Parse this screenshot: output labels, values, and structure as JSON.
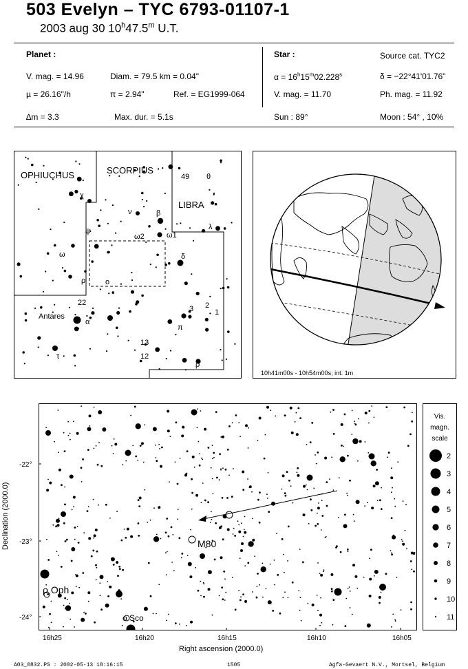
{
  "header": {
    "title": "503 Evelyn  –  TYC 6793-01107-1",
    "date": "2003 aug 30  10",
    "time_h": "h",
    "time_min": "47.5",
    "time_m": "m",
    "time_ut": " U.T."
  },
  "planet": {
    "heading": "Planet :",
    "vmag": "V. mag. = 14.96",
    "diam": "Diam. = 79.5 km = 0.04\"",
    "mu": "µ =  26.16\"/h",
    "pi": "π =  2.94\"",
    "ref": "Ref. = EG1999-064"
  },
  "star": {
    "heading": "Star :",
    "source": "Source cat.  TYC2",
    "alpha_pre": "α = 16",
    "alpha_h": "h",
    "alpha_mid": "15",
    "alpha_m": "m",
    "alpha_post": "02.228",
    "alpha_s": "s",
    "delta": "δ = −22°41'01.76\"",
    "vmag": "V. mag. = 11.70",
    "phmag": "Ph. mag. = 11.92"
  },
  "event": {
    "dm": "∆m = 3.3",
    "maxdur": "Max. dur. = 5.1s",
    "sun": "Sun :  89°",
    "moon": "Moon :  54° , 10%"
  },
  "finder_chart": {
    "constellations": [
      "OPHIUCHUS",
      "SCORPIUS",
      "LIBRA"
    ],
    "labels": [
      "49",
      "θ",
      "χ",
      "ν",
      "β",
      "λ",
      "ψ",
      "ω2",
      "ω1",
      "ω",
      "δ",
      "ρ",
      "o",
      "22",
      "2",
      "3",
      "1",
      "Antares",
      "α",
      "σ",
      "π",
      "13",
      "12",
      "τ",
      "ρ"
    ]
  },
  "globe": {
    "caption": "10h41m00s - 10h54m00s; int.  1m"
  },
  "detail_chart": {
    "ylabel": "Declination (2000.0)",
    "xlabel": "Right ascension (2000.0)",
    "yticks": [
      "-22°",
      "-23°",
      "-24°"
    ],
    "xticks": [
      "16h25",
      "16h20",
      "16h15",
      "16h10",
      "16h05"
    ],
    "objects": [
      "M80",
      "ρ Oph",
      "o Sco"
    ]
  },
  "mag_scale": {
    "title": [
      "Vis.",
      "magn.",
      "scale"
    ],
    "values": [
      "2",
      "3",
      "4",
      "5",
      "6",
      "7",
      "8",
      "9",
      "10",
      "11"
    ]
  },
  "footer": {
    "left": "A03_0832.PS : 2002-05-13 18:16:15",
    "center": "1505",
    "right": "Agfa-Gevaert N.V., Mortsel, Belgium"
  }
}
